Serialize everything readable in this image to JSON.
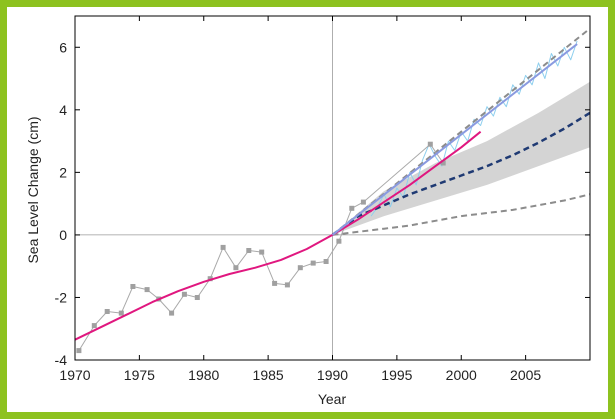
{
  "chart_data": {
    "type": "line",
    "title": "",
    "xlabel": "Year",
    "ylabel": "Sea Level Change (cm)",
    "xlim": [
      1970,
      2010
    ],
    "ylim": [
      -4,
      7
    ],
    "x_ticks": [
      1970,
      1975,
      1980,
      1985,
      1990,
      1995,
      2000,
      2005
    ],
    "y_ticks": [
      -4,
      -2,
      0,
      2,
      4,
      6
    ],
    "reference_lines": {
      "x": 1990,
      "y": 0
    },
    "colors": {
      "tide_gauge": "#a9a9a9",
      "tide_gauge_smooth": "#e0177f",
      "satellite": "#8ecfee",
      "satellite_trend": "#8a9ae0",
      "ipcc_band": "#d4d4d4",
      "projection_mid": "#1f3a73",
      "projection_low_high": "#8c8c8c",
      "frame": "#8dc21f"
    },
    "series": [
      {
        "style": "thin gray line with square markers",
        "x": [
          1970.3,
          1971.5,
          1972.5,
          1973.6,
          1974.5,
          1975.6,
          1976.5,
          1977.5,
          1978.5,
          1979.5,
          1980.5,
          1981.5,
          1982.5,
          1983.5,
          1984.5,
          1985.5,
          1986.5,
          1987.5,
          1988.5,
          1989.5,
          1990.5,
          1991.5,
          1992.4,
          1997.6,
          1998.6
        ],
        "y": [
          -3.7,
          -2.9,
          -2.45,
          -2.5,
          -1.65,
          -1.75,
          -2.05,
          -2.5,
          -1.9,
          -2.0,
          -1.4,
          -0.4,
          -1.05,
          -0.5,
          -0.55,
          -1.55,
          -1.6,
          -1.05,
          -0.9,
          -0.85,
          -0.2,
          0.85,
          1.05,
          2.9,
          2.3
        ]
      },
      {
        "style": "smooth magenta curve",
        "x": [
          1970,
          1972,
          1974,
          1976,
          1978,
          1980,
          1982,
          1984,
          1986,
          1988,
          1990,
          1992,
          1994,
          1996,
          1998,
          2000,
          2001.5
        ],
        "y": [
          -3.35,
          -2.95,
          -2.55,
          -2.15,
          -1.8,
          -1.5,
          -1.25,
          -1.05,
          -0.8,
          -0.45,
          0.0,
          0.5,
          1.05,
          1.6,
          2.2,
          2.8,
          3.3
        ]
      },
      {
        "style": "noisy light blue line",
        "x": [
          1993.0,
          1993.5,
          1994.0,
          1994.5,
          1995.0,
          1995.5,
          1996.0,
          1996.5,
          1997.0,
          1997.5,
          1998.0,
          1998.5,
          1999.0,
          1999.5,
          2000.0,
          2000.5,
          2001.0,
          2001.5,
          2002.0,
          2002.5,
          2003.0,
          2003.5,
          2004.0,
          2004.5,
          2005.0,
          2005.5,
          2006.0,
          2006.5,
          2007.0,
          2007.5,
          2008.0,
          2008.5,
          2009.0
        ],
        "y": [
          0.6,
          0.9,
          1.3,
          0.9,
          1.5,
          1.2,
          2.0,
          1.6,
          2.4,
          2.9,
          2.5,
          2.2,
          3.0,
          2.7,
          3.3,
          3.0,
          3.7,
          3.5,
          4.1,
          3.8,
          4.4,
          4.1,
          4.8,
          4.5,
          5.1,
          4.8,
          5.5,
          5.0,
          5.8,
          5.4,
          6.0,
          5.6,
          6.2
        ]
      },
      {
        "style": "solid periwinkle trend line",
        "x": [
          1990,
          2009
        ],
        "y": [
          0.0,
          6.1
        ]
      },
      {
        "style": "gray dashed upper line",
        "x": [
          1990,
          2010
        ],
        "y": [
          0.0,
          6.6
        ]
      },
      {
        "style": "dark blue dashed projection",
        "x": [
          1990,
          1992,
          1994,
          1996,
          1998,
          2000,
          2002,
          2004,
          2006,
          2008,
          2010
        ],
        "y": [
          0.0,
          0.6,
          0.95,
          1.3,
          1.6,
          1.9,
          2.2,
          2.55,
          2.95,
          3.4,
          3.9
        ]
      },
      {
        "style": "gray dashed lower line",
        "x": [
          1990,
          1992,
          1994,
          1996,
          1998,
          2000,
          2002,
          2004,
          2006,
          2008,
          2010
        ],
        "y": [
          0.0,
          0.1,
          0.2,
          0.3,
          0.45,
          0.6,
          0.7,
          0.8,
          0.95,
          1.1,
          1.3
        ]
      }
    ],
    "band": {
      "x": [
        1990,
        1994,
        1998,
        2002,
        2006,
        2010
      ],
      "upper": [
        0.0,
        1.4,
        2.3,
        3.0,
        3.9,
        4.9
      ],
      "lower": [
        0.0,
        0.6,
        1.1,
        1.6,
        2.2,
        2.8
      ]
    }
  }
}
